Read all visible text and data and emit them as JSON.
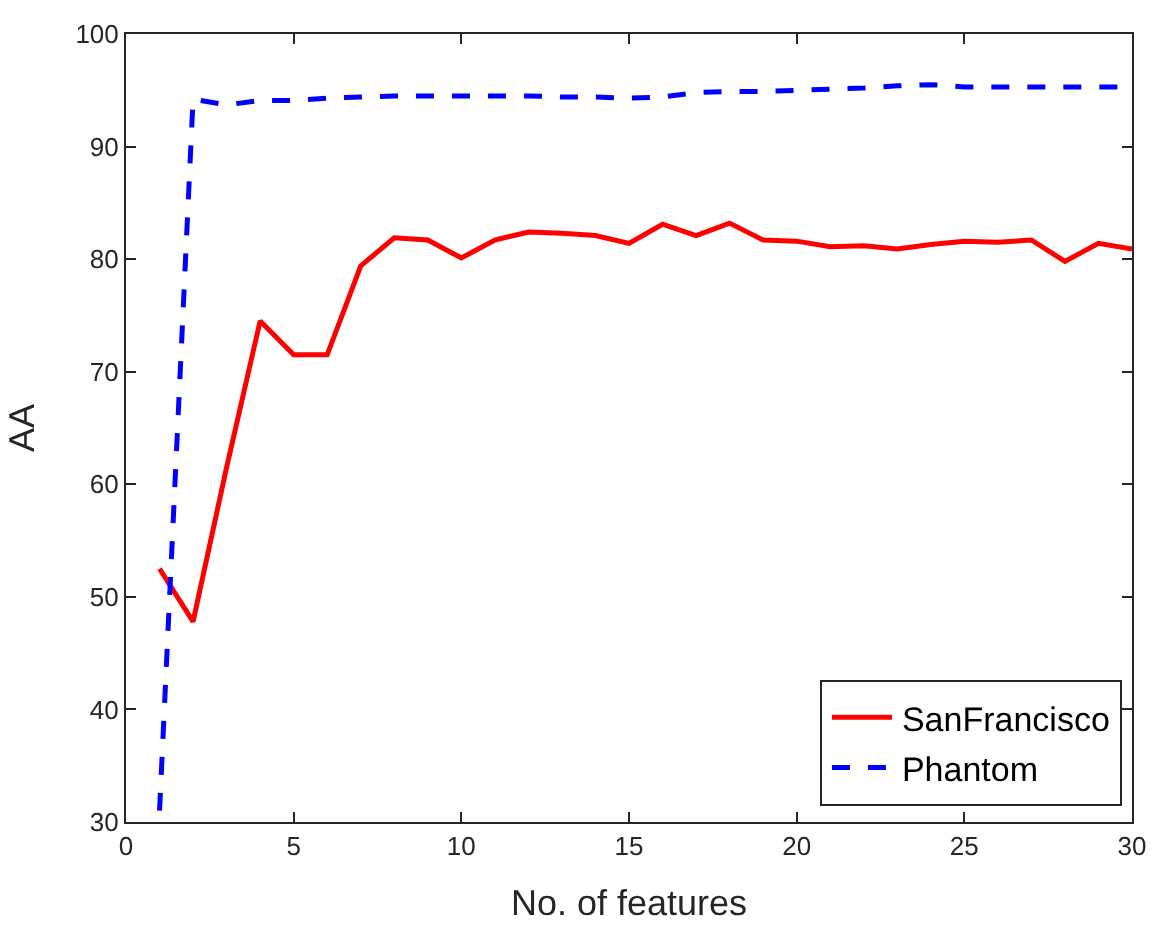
{
  "chart_data": {
    "type": "line",
    "xlabel": "No. of features",
    "ylabel": "AA",
    "x": [
      1,
      2,
      3,
      4,
      5,
      6,
      7,
      8,
      9,
      10,
      11,
      12,
      13,
      14,
      15,
      16,
      17,
      18,
      19,
      20,
      21,
      22,
      23,
      24,
      25,
      26,
      27,
      28,
      29,
      30
    ],
    "series": [
      {
        "name": "SanFrancisco",
        "color": "#ff0000",
        "line_style": "solid",
        "values": [
          52.5,
          47.8,
          61.5,
          74.5,
          71.5,
          71.5,
          79.4,
          81.9,
          81.7,
          80.1,
          81.7,
          82.4,
          82.3,
          82.1,
          81.4,
          83.1,
          82.1,
          83.2,
          81.7,
          81.6,
          81.1,
          81.2,
          80.9,
          81.3,
          81.6,
          81.5,
          81.7,
          79.8,
          81.4,
          80.9
        ]
      },
      {
        "name": "Phantom",
        "color": "#0000ff",
        "line_style": "dashed",
        "values": [
          31,
          94.2,
          93.7,
          94.1,
          94.1,
          94.3,
          94.4,
          94.5,
          94.5,
          94.5,
          94.5,
          94.5,
          94.4,
          94.4,
          94.3,
          94.4,
          94.8,
          94.9,
          94.9,
          95.0,
          95.1,
          95.2,
          95.4,
          95.5,
          95.3,
          95.3,
          95.3,
          95.3,
          95.3,
          95.3
        ]
      }
    ],
    "xlim": [
      0,
      30
    ],
    "xticks": [
      0,
      5,
      10,
      15,
      20,
      25,
      30
    ],
    "ylim": [
      30,
      100
    ],
    "yticks": [
      30,
      40,
      50,
      60,
      70,
      80,
      90,
      100
    ],
    "grid": false,
    "legend": "bottom right",
    "marker": "none"
  }
}
